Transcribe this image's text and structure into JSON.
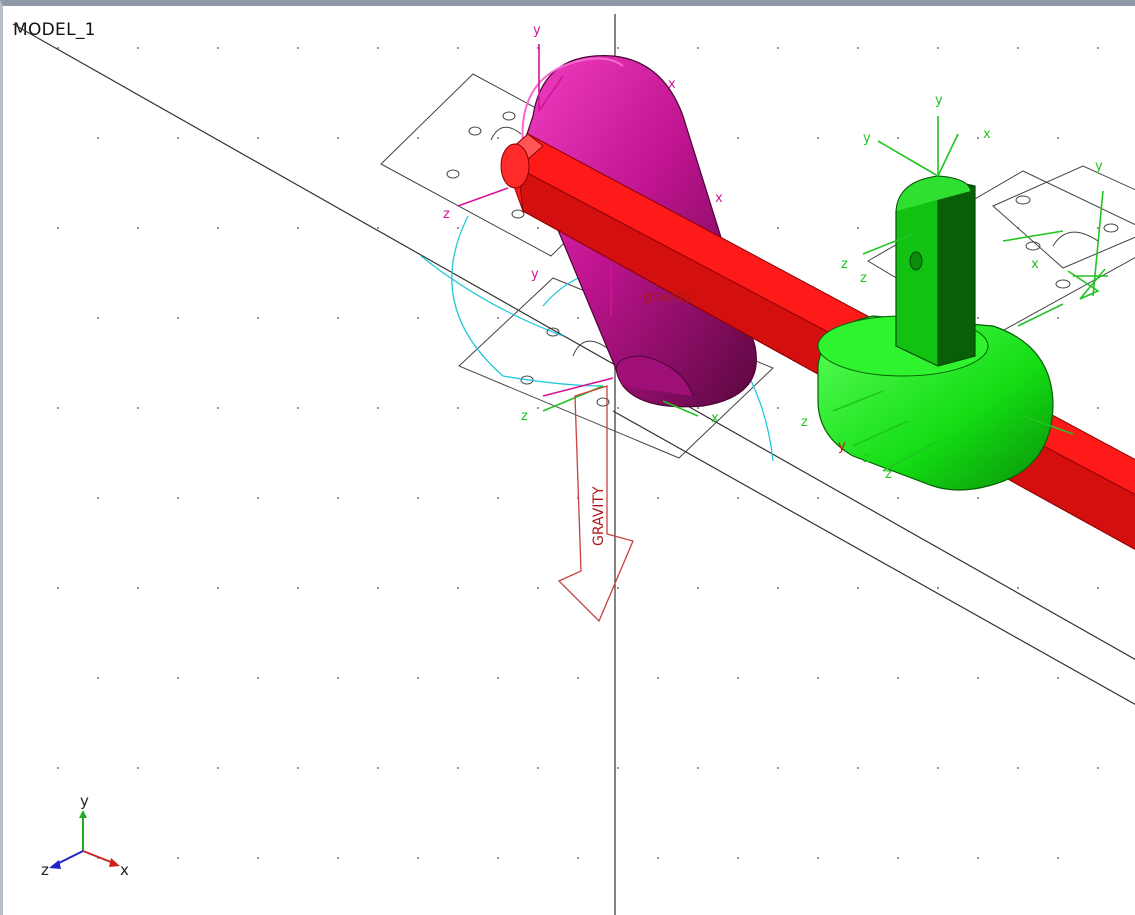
{
  "viewport": {
    "model_name": "MODEL_1",
    "gravity_label": "gravity",
    "gravity_vector_text": "GRAVITY",
    "triad": {
      "x": "x",
      "y": "y",
      "z": "z"
    },
    "marker_labels": {
      "x": "x",
      "y": "y",
      "z": "z"
    }
  },
  "colors": {
    "background": "#ffffff",
    "ground_lines": "#333333",
    "link_red": "#ff1a1a",
    "crank_magenta": "#d6159a",
    "bracket_green": "#18e018",
    "marker_green": "#22c422",
    "marker_magenta": "#d4139a",
    "joint_cyan": "#22c8d8",
    "gravity_red": "#c84040",
    "triad_x": "#cc2222",
    "triad_y": "#22aa22",
    "triad_z": "#2222cc"
  },
  "icons": [
    "coordinate-triad-icon",
    "gravity-arrow-icon",
    "joint-marker-icon"
  ]
}
